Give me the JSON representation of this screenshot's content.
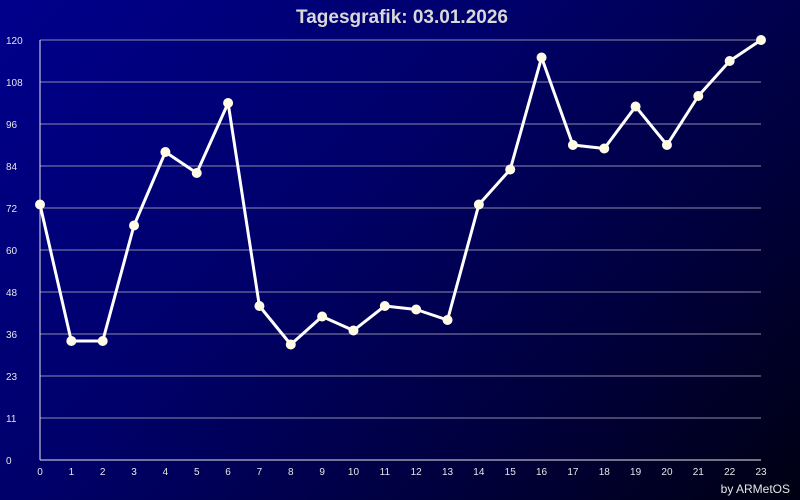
{
  "chart_data": {
    "type": "line",
    "title": "Tagesgrafik: 03.01.2026",
    "credit": "by ARMetOS",
    "xlabel": "",
    "ylabel": "",
    "x": [
      0,
      1,
      2,
      3,
      4,
      5,
      6,
      7,
      8,
      9,
      10,
      11,
      12,
      13,
      14,
      15,
      16,
      17,
      18,
      19,
      20,
      21,
      22,
      23
    ],
    "values": [
      73,
      34,
      34,
      67,
      88,
      82,
      102,
      44,
      33,
      41,
      37,
      44,
      43,
      40,
      73,
      83,
      115,
      90,
      89,
      101,
      90,
      104,
      114,
      120
    ],
    "y_ticks": [
      "0",
      "11",
      "23",
      "36",
      "48",
      "60",
      "72",
      "84",
      "96",
      "108",
      "120"
    ],
    "x_ticks": [
      "0",
      "1",
      "2",
      "3",
      "4",
      "5",
      "6",
      "7",
      "8",
      "9",
      "10",
      "11",
      "12",
      "13",
      "14",
      "15",
      "16",
      "17",
      "18",
      "19",
      "20",
      "21",
      "22",
      "23"
    ],
    "ylim": [
      0,
      120
    ],
    "xlim": [
      0,
      23
    ],
    "grid": true,
    "legend": "none",
    "colors": {
      "line": "#ffffff",
      "marker": "#fffbe6",
      "grid": "#8a8aa8",
      "axis": "#e6e6e6"
    }
  }
}
